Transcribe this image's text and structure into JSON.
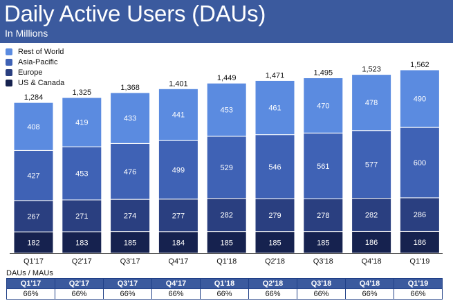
{
  "header": {
    "title": "Daily Active Users (DAUs)",
    "subtitle": "In Millions"
  },
  "colors": {
    "header_bg": "#3b5a9e",
    "rest_of_world": "#5b8be0",
    "asia_pacific": "#3f62b5",
    "europe": "#2a3f80",
    "us_canada": "#16224f"
  },
  "chart_data": {
    "type": "bar",
    "stacked": true,
    "categories": [
      "Q1'17",
      "Q2'17",
      "Q3'17",
      "Q4'17",
      "Q1'18",
      "Q2'18",
      "Q3'18",
      "Q4'18",
      "Q1'19"
    ],
    "series": [
      {
        "name": "US & Canada",
        "values": [
          182,
          183,
          185,
          184,
          185,
          185,
          185,
          186,
          186
        ]
      },
      {
        "name": "Europe",
        "values": [
          267,
          271,
          274,
          277,
          282,
          279,
          278,
          282,
          286
        ]
      },
      {
        "name": "Asia-Pacific",
        "values": [
          427,
          453,
          476,
          499,
          529,
          546,
          561,
          577,
          600
        ]
      },
      {
        "name": "Rest of World",
        "values": [
          408,
          419,
          433,
          441,
          453,
          461,
          470,
          478,
          490
        ]
      }
    ],
    "totals": [
      "1,284",
      "1,325",
      "1,368",
      "1,401",
      "1,449",
      "1,471",
      "1,495",
      "1,523",
      "1,562"
    ],
    "legend_order": [
      "Rest of World",
      "Asia-Pacific",
      "Europe",
      "US & Canada"
    ],
    "legend_position": "top-left",
    "ylim": [
      0,
      1562
    ],
    "grid": false
  },
  "ratio_table": {
    "label": "DAUs / MAUs",
    "headers": [
      "Q1'17",
      "Q2'17",
      "Q3'17",
      "Q4'17",
      "Q1'18",
      "Q2'18",
      "Q3'18",
      "Q4'18",
      "Q1'19"
    ],
    "values": [
      "66%",
      "66%",
      "66%",
      "66%",
      "66%",
      "66%",
      "66%",
      "66%",
      "66%"
    ]
  }
}
